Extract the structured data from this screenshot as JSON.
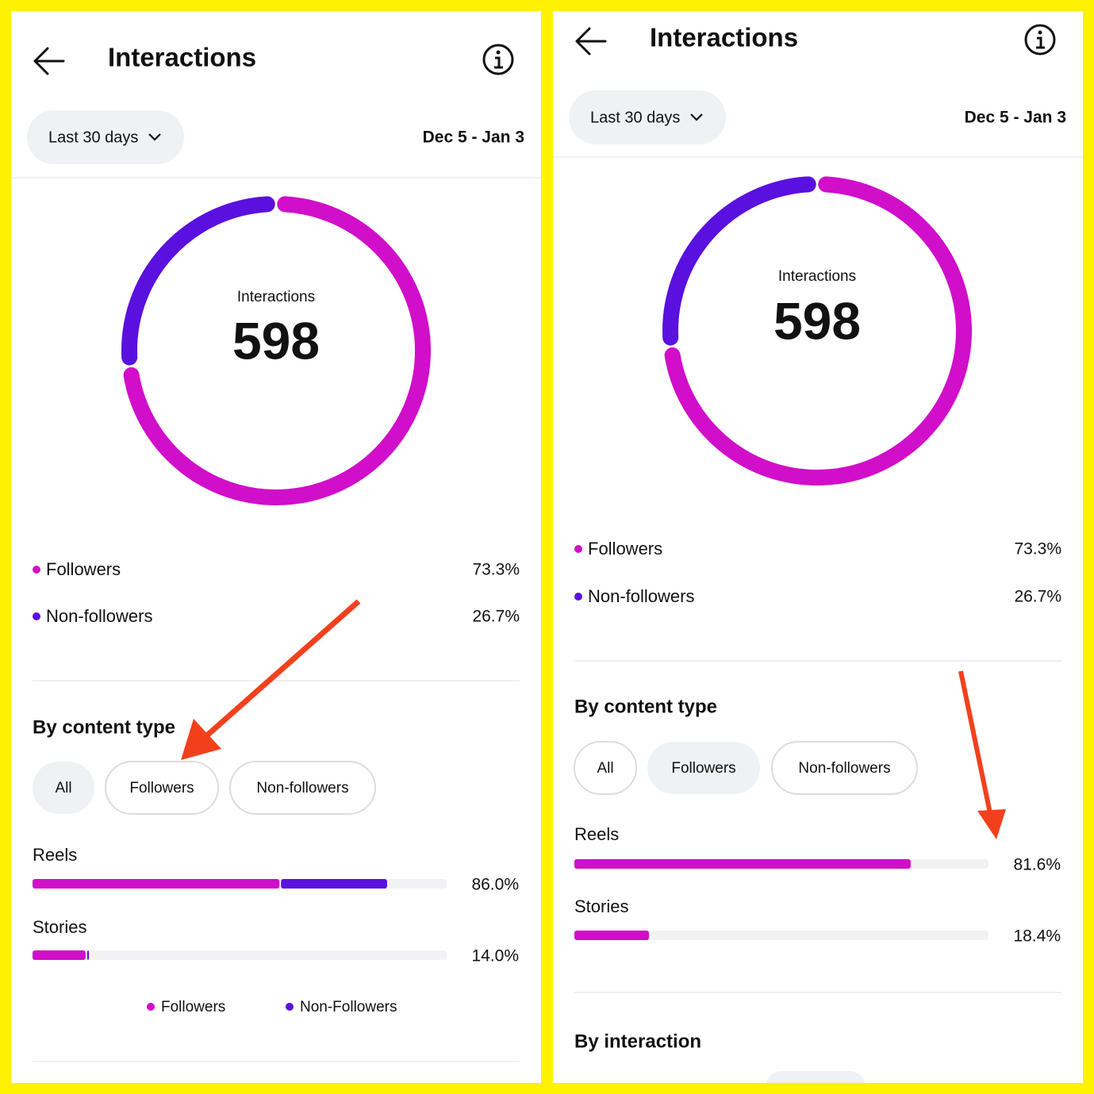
{
  "panels": [
    {
      "header": {
        "title": "Interactions"
      },
      "period": "Last 30 days",
      "date_range": "Dec 5 - Jan 3",
      "donut": {
        "label": "Interactions",
        "total": "598",
        "segments": [
          {
            "name": "Followers",
            "value": 73.3,
            "label": "73.3%",
            "color": "#d10ec9"
          },
          {
            "name": "Non-followers",
            "value": 26.7,
            "label": "26.7%",
            "color": "#5a10df"
          }
        ]
      },
      "section_title": "By content type",
      "filters": {
        "items": [
          "All",
          "Followers",
          "Non-followers"
        ],
        "selected": 0
      },
      "bars": [
        {
          "name": "Reels",
          "label": "86.0%",
          "parts": [
            {
              "value": 60.0,
              "color": "#d10ec9"
            },
            {
              "value": 26.0,
              "color": "#5a10df"
            }
          ]
        },
        {
          "name": "Stories",
          "label": "14.0%",
          "parts": [
            {
              "value": 13.2,
              "color": "#d10ec9"
            },
            {
              "value": 0.8,
              "color": "#5a10df"
            }
          ]
        }
      ],
      "bar_legend": [
        {
          "name": "Followers",
          "color": "#d10ec9"
        },
        {
          "name": "Non-Followers",
          "color": "#5a10df"
        }
      ]
    },
    {
      "header": {
        "title": "Interactions"
      },
      "period": "Last 30 days",
      "date_range": "Dec 5 - Jan 3",
      "donut": {
        "label": "Interactions",
        "total": "598",
        "segments": [
          {
            "name": "Followers",
            "value": 73.3,
            "label": "73.3%",
            "color": "#d10ec9"
          },
          {
            "name": "Non-followers",
            "value": 26.7,
            "label": "26.7%",
            "color": "#5a10df"
          }
        ]
      },
      "section_title": "By content type",
      "filters": {
        "items": [
          "All",
          "Followers",
          "Non-followers"
        ],
        "selected": 1
      },
      "bars": [
        {
          "name": "Reels",
          "label": "81.6%",
          "parts": [
            {
              "value": 81.6,
              "color": "#d10ec9"
            }
          ]
        },
        {
          "name": "Stories",
          "label": "18.4%",
          "parts": [
            {
              "value": 18.4,
              "color": "#d10ec9"
            }
          ]
        }
      ],
      "next_section": "By interaction"
    }
  ]
}
